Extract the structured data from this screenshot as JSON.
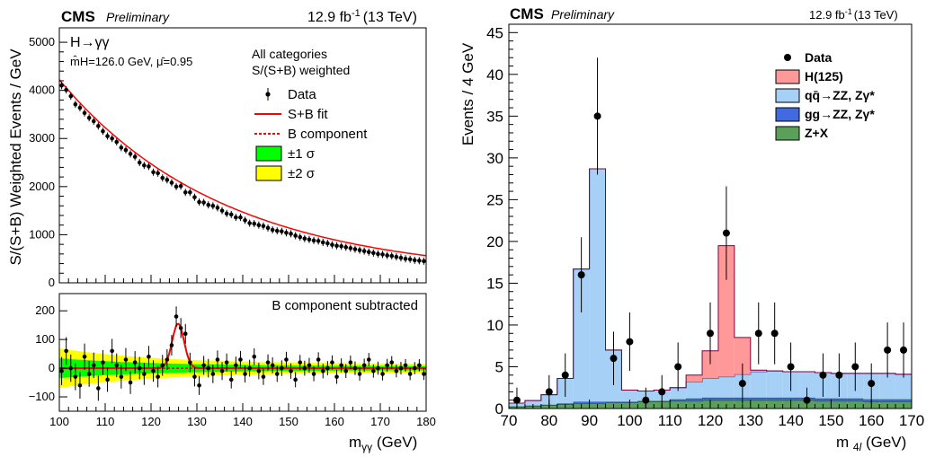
{
  "chart_data": [
    {
      "type": "scatter",
      "panel": "left-top",
      "experiment": "CMS",
      "status": "Preliminary",
      "lumi": "12.9 fb",
      "lumi_exp": "-1",
      "energy": "(13 TeV)",
      "process": "H→γγ",
      "fit_mass": "m̂H=126.0 GeV, μ̂=0.95",
      "category_line1": "All categories",
      "category_line2": "S/(S+B) weighted",
      "ylabel": "S/(S+B) Weighted Events / GeV",
      "ylim": [
        0,
        5300
      ],
      "xlim": [
        100,
        180
      ],
      "yticks": [
        "0",
        "1000",
        "2000",
        "3000",
        "4000",
        "5000"
      ],
      "legend": [
        {
          "label": "Data",
          "kind": "data"
        },
        {
          "label": "S+B fit",
          "kind": "line",
          "color": "#ff0000"
        },
        {
          "label": "B component",
          "kind": "dashed",
          "color": "#ff0000"
        },
        {
          "label": "±1 σ",
          "kind": "box",
          "color": "#00ff00"
        },
        {
          "label": "±2 σ",
          "kind": "box",
          "color": "#ffff00"
        }
      ],
      "x": [
        100,
        101,
        102,
        103,
        104,
        105,
        106,
        107,
        108,
        109,
        110,
        111,
        112,
        113,
        114,
        115,
        116,
        117,
        118,
        119,
        120,
        121,
        122,
        123,
        124,
        125,
        126,
        127,
        128,
        129,
        130,
        131,
        132,
        133,
        134,
        135,
        136,
        137,
        138,
        139,
        140,
        141,
        142,
        143,
        144,
        145,
        146,
        147,
        148,
        149,
        150,
        151,
        152,
        153,
        154,
        155,
        156,
        157,
        158,
        159,
        160,
        161,
        162,
        163,
        164,
        165,
        166,
        167,
        168,
        169,
        170,
        171,
        172,
        173,
        174,
        175,
        176,
        177,
        178,
        179
      ],
      "y": [
        4100,
        4010,
        3880,
        3710,
        3640,
        3530,
        3430,
        3360,
        3260,
        3150,
        3050,
        3000,
        2930,
        2810,
        2760,
        2680,
        2620,
        2500,
        2440,
        2420,
        2300,
        2280,
        2180,
        2140,
        2080,
        2000,
        2010,
        1880,
        1880,
        1780,
        1680,
        1670,
        1620,
        1600,
        1560,
        1500,
        1440,
        1420,
        1360,
        1360,
        1300,
        1240,
        1230,
        1200,
        1180,
        1140,
        1100,
        1080,
        1070,
        1040,
        1020,
        980,
        950,
        920,
        900,
        880,
        870,
        840,
        820,
        790,
        770,
        760,
        740,
        720,
        700,
        680,
        660,
        640,
        620,
        600,
        590,
        570,
        560,
        540,
        520,
        500,
        490,
        470,
        460,
        450
      ]
    },
    {
      "type": "scatter",
      "panel": "left-bottom",
      "annotation": "B component subtracted",
      "xlabel": "mγγ (GeV)",
      "xlim": [
        100,
        180
      ],
      "ylim": [
        -150,
        260
      ],
      "xticks": [
        "100",
        "110",
        "120",
        "130",
        "140",
        "150",
        "160",
        "170",
        "180"
      ],
      "yticks": [
        "−100",
        "0",
        "100",
        "200"
      ],
      "x": [
        100,
        101,
        102,
        103,
        104,
        105,
        106,
        107,
        108,
        109,
        110,
        111,
        112,
        113,
        114,
        115,
        116,
        117,
        118,
        119,
        120,
        121,
        122,
        123,
        124,
        125,
        126,
        127,
        128,
        129,
        130,
        131,
        132,
        133,
        134,
        135,
        136,
        137,
        138,
        139,
        140,
        141,
        142,
        143,
        144,
        145,
        146,
        147,
        148,
        149,
        150,
        151,
        152,
        153,
        154,
        155,
        156,
        157,
        158,
        159,
        160,
        161,
        162,
        163,
        164,
        165,
        166,
        167,
        168,
        169,
        170,
        171,
        172,
        173,
        174,
        175,
        176,
        177,
        178,
        179
      ],
      "y": [
        -10,
        60,
        0,
        -30,
        -60,
        40,
        -20,
        10,
        -70,
        20,
        -40,
        60,
        10,
        -30,
        30,
        -50,
        20,
        0,
        -20,
        40,
        -10,
        -30,
        10,
        30,
        80,
        180,
        140,
        120,
        20,
        -30,
        -60,
        10,
        0,
        -20,
        30,
        -10,
        20,
        -40,
        10,
        30,
        -20,
        0,
        40,
        -10,
        -30,
        20,
        10,
        -20,
        0,
        30,
        -10,
        -40,
        20,
        0,
        10,
        -20,
        30,
        -10,
        0,
        20,
        -30,
        10,
        -10,
        20,
        0,
        -20,
        10,
        30,
        -10,
        0,
        -20,
        10,
        20,
        -10,
        0,
        10,
        -20,
        0,
        10,
        -20
      ],
      "fit_peak_x": 125.9,
      "fit_peak_y": 155
    },
    {
      "type": "bar",
      "panel": "right",
      "experiment": "CMS",
      "status": "Preliminary",
      "lumi": "12.9 fb",
      "lumi_exp": "-1",
      "energy": "(13 TeV)",
      "xlabel": "m 4l (GeV)",
      "ylabel": "Events / 4 GeV",
      "xlim": [
        70,
        170
      ],
      "ylim": [
        0,
        46
      ],
      "xticks": [
        "70",
        "80",
        "90",
        "100",
        "110",
        "120",
        "130",
        "140",
        "150",
        "160",
        "170"
      ],
      "yticks": [
        "0",
        "5",
        "10",
        "15",
        "20",
        "25",
        "30",
        "35",
        "40",
        "45"
      ],
      "bin_edges": [
        70,
        74,
        78,
        82,
        86,
        90,
        94,
        98,
        102,
        106,
        110,
        114,
        118,
        122,
        126,
        130,
        134,
        138,
        142,
        146,
        150,
        154,
        158,
        162,
        166,
        170
      ],
      "series": [
        {
          "name": "Z+X",
          "color": "#5aa05a",
          "values": [
            0.2,
            0.3,
            0.4,
            0.5,
            0.6,
            0.6,
            0.7,
            0.7,
            0.8,
            0.8,
            0.9,
            0.9,
            1.0,
            1.0,
            1.0,
            1.0,
            1.0,
            1.0,
            1.0,
            0.9,
            0.9,
            0.9,
            0.8,
            0.8,
            0.8
          ]
        },
        {
          "name": "gg→ZZ, Zγ*",
          "color": "#4169e1",
          "values": [
            0.05,
            0.05,
            0.05,
            0.1,
            0.2,
            0.2,
            0.1,
            0.1,
            0.1,
            0.1,
            0.2,
            0.3,
            0.3,
            0.3,
            0.3,
            0.3,
            0.3,
            0.3,
            0.3,
            0.3,
            0.3,
            0.3,
            0.3,
            0.3,
            0.3
          ]
        },
        {
          "name": "qq̄→ZZ, Zγ*",
          "color": "#a6d0f5",
          "values": [
            0.4,
            0.6,
            1.2,
            3.0,
            15.9,
            27.9,
            6.2,
            1.4,
            1.2,
            1.3,
            1.4,
            2.0,
            2.3,
            2.5,
            2.8,
            3.1,
            3.2,
            3.1,
            3.1,
            3.1,
            3.0,
            3.0,
            3.1,
            3.1,
            3.0
          ]
        },
        {
          "name": "H(125)",
          "color": "#ff9999",
          "values": [
            0,
            0,
            0,
            0,
            0,
            0,
            0,
            0,
            0,
            0,
            0,
            0.8,
            3.3,
            15.7,
            4.4,
            0.2,
            0,
            0,
            0,
            0,
            0,
            0,
            0,
            0,
            0
          ]
        }
      ],
      "data": {
        "name": "Data",
        "x": [
          72,
          80,
          84,
          88,
          92,
          96,
          100,
          104,
          108,
          112,
          120,
          124,
          128,
          132,
          136,
          140,
          144,
          148,
          152,
          156,
          160,
          164,
          168
        ],
        "y": [
          1,
          2,
          4,
          16,
          35,
          6,
          8,
          1,
          2,
          5,
          9,
          21,
          3,
          9,
          9,
          5,
          1,
          4,
          4,
          5,
          3,
          7,
          7
        ],
        "err": [
          1.5,
          2.0,
          2.6,
          4.5,
          7.0,
          3.2,
          3.5,
          1.5,
          2.0,
          2.9,
          3.7,
          5.6,
          2.4,
          3.7,
          3.7,
          2.9,
          1.5,
          2.6,
          2.6,
          2.9,
          2.4,
          3.3,
          3.3
        ]
      },
      "legend": [
        {
          "label": "Data",
          "kind": "data"
        },
        {
          "label": "H(125)",
          "kind": "box",
          "color": "#ff9999"
        },
        {
          "label": "qq̄→ZZ, Zγ*",
          "kind": "box",
          "color": "#a6d0f5"
        },
        {
          "label": "gg→ZZ, Zγ*",
          "kind": "box",
          "color": "#4169e1"
        },
        {
          "label": "Z+X",
          "kind": "box",
          "color": "#5aa05a"
        }
      ]
    }
  ]
}
